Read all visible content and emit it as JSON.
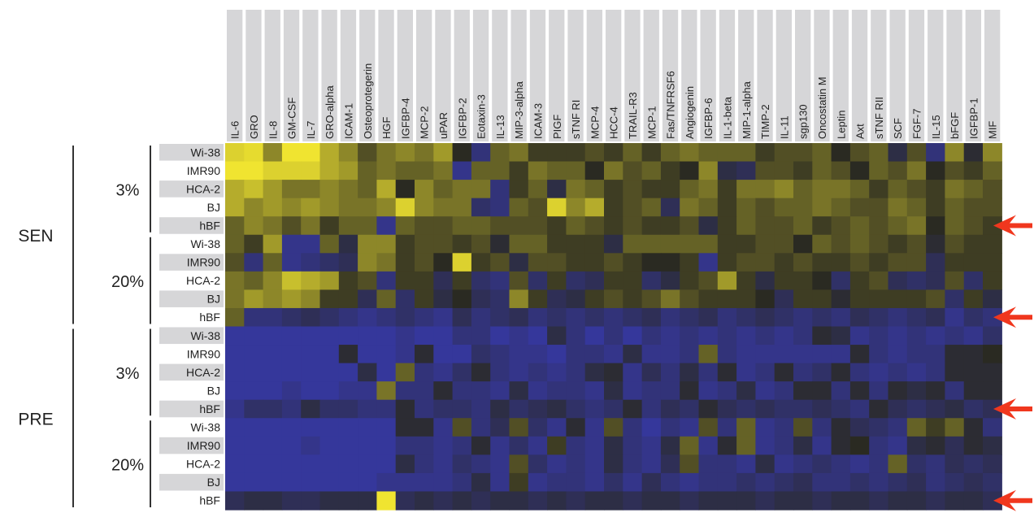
{
  "chart_data": {
    "type": "heatmap",
    "title": "",
    "xlabel": "",
    "ylabel": "",
    "columns": [
      "IL-6",
      "GRO",
      "IL-8",
      "GM-CSF",
      "IL-7",
      "GRO-alpha",
      "ICAM-1",
      "Osteoprotegerin",
      "HGF",
      "IGFBP-4",
      "MCP-2",
      "uPAR",
      "IGFBP-2",
      "Eotaxin-3",
      "IL-13",
      "MIP-3-alpha",
      "ICAM-3",
      "PIGF",
      "sTNF RI",
      "MCP-4",
      "HCC-4",
      "TRAIL-R3",
      "MCP-1",
      "Fas/TNFRSF6",
      "Angiogenin",
      "IGFBP-6",
      "IL-1-beta",
      "MIP-1-alpha",
      "TIMP-2",
      "IL-11",
      "sgp130",
      "Oncostatin M",
      "Leptin",
      "Axt",
      "sTNF RII",
      "SCF",
      "FGF-7",
      "IL-15",
      "bFGF",
      "IGFBP-1",
      "MIF"
    ],
    "row_labels": [
      "Wi-38",
      "IMR90",
      "HCA-2",
      "BJ",
      "hBF",
      "Wi-38",
      "IMR90",
      "HCA-2",
      "BJ",
      "hBF",
      "Wi-38",
      "IMR90",
      "HCA-2",
      "BJ",
      "hBF",
      "Wi-38",
      "IMR90",
      "HCA-2",
      "BJ",
      "hBF"
    ],
    "group_labels": [
      {
        "label": "SEN",
        "rows": [
          0,
          9
        ]
      },
      {
        "label": "PRE",
        "rows": [
          10,
          19
        ]
      }
    ],
    "subgroup_labels": [
      {
        "label": "3%",
        "rows": [
          0,
          4
        ]
      },
      {
        "label": "20%",
        "rows": [
          5,
          9
        ]
      },
      {
        "label": "3%",
        "rows": [
          10,
          14
        ]
      },
      {
        "label": "20%",
        "rows": [
          15,
          19
        ]
      }
    ],
    "arrow_rows": [
      4,
      9,
      14,
      19
    ],
    "color_scale": {
      "low": "#3a3ccf",
      "mid": "#2a2a22",
      "high": "#f0e430",
      "range": [
        -1,
        1
      ]
    },
    "values": [
      [
        0.9,
        0.95,
        0.5,
        1.0,
        1.0,
        0.7,
        0.5,
        0.2,
        0.4,
        0.5,
        0.4,
        0.6,
        0.0,
        -0.5,
        0.3,
        0.4,
        0.1,
        0.1,
        0.1,
        0.2,
        0.1,
        0.3,
        0.1,
        0.3,
        0.4,
        0.3,
        0.3,
        0.3,
        0.1,
        0.2,
        0.2,
        0.3,
        0.0,
        0.2,
        0.3,
        -0.2,
        0.2,
        -0.5,
        0.5,
        -0.1,
        0.5
      ],
      [
        1.0,
        1.0,
        0.9,
        0.9,
        0.9,
        0.7,
        0.6,
        0.3,
        0.4,
        0.3,
        0.3,
        0.4,
        -0.6,
        0.3,
        0.3,
        0.1,
        0.4,
        0.3,
        0.3,
        0.0,
        0.4,
        0.2,
        0.3,
        0.1,
        0.0,
        0.5,
        -0.2,
        -0.3,
        0.2,
        0.2,
        0.1,
        0.3,
        0.2,
        0.0,
        0.3,
        0.2,
        0.4,
        0.0,
        0.2,
        0.1,
        0.3
      ],
      [
        0.7,
        0.8,
        0.6,
        0.4,
        0.4,
        0.5,
        0.4,
        0.3,
        0.7,
        0.0,
        0.5,
        0.3,
        0.4,
        0.4,
        -0.5,
        0.1,
        0.3,
        -0.2,
        0.4,
        0.3,
        0.1,
        0.2,
        0.1,
        0.1,
        0.3,
        0.4,
        0.1,
        0.4,
        0.4,
        0.5,
        0.3,
        0.4,
        0.4,
        0.3,
        0.1,
        0.3,
        0.2,
        0.1,
        0.4,
        0.3,
        0.2
      ],
      [
        0.7,
        0.5,
        0.6,
        0.5,
        0.6,
        0.5,
        0.4,
        0.4,
        0.5,
        0.9,
        0.5,
        0.4,
        0.4,
        -0.4,
        -0.5,
        0.3,
        0.2,
        0.9,
        0.5,
        0.7,
        0.1,
        0.2,
        0.3,
        -0.3,
        0.4,
        0.3,
        0.1,
        0.3,
        0.2,
        0.3,
        0.3,
        0.4,
        0.3,
        0.2,
        0.2,
        0.4,
        0.3,
        0.1,
        0.3,
        0.2,
        0.2
      ],
      [
        0.3,
        0.5,
        0.4,
        0.2,
        0.4,
        0.1,
        0.3,
        0.3,
        -0.6,
        0.3,
        0.2,
        0.2,
        0.3,
        0.3,
        0.2,
        0.2,
        0.2,
        0.1,
        0.3,
        0.2,
        0.1,
        0.2,
        0.1,
        0.1,
        0.2,
        -0.2,
        0.1,
        0.3,
        0.2,
        0.2,
        0.3,
        0.1,
        0.2,
        0.3,
        0.2,
        0.3,
        0.4,
        0.0,
        0.3,
        0.2,
        0.1
      ],
      [
        0.3,
        0.1,
        0.6,
        -0.6,
        -0.6,
        0.3,
        -0.2,
        0.5,
        0.5,
        0.1,
        0.2,
        0.2,
        0.1,
        0.2,
        -0.1,
        0.3,
        0.3,
        0.1,
        0.1,
        0.1,
        -0.2,
        0.3,
        0.3,
        0.3,
        0.3,
        0.3,
        0.1,
        0.1,
        0.2,
        0.2,
        0.0,
        0.3,
        0.2,
        0.3,
        0.2,
        0.1,
        0.2,
        -0.1,
        0.2,
        0.1,
        0.1
      ],
      [
        0.2,
        -0.5,
        0.3,
        -0.6,
        -0.5,
        -0.4,
        -0.3,
        0.5,
        0.4,
        0.1,
        0.2,
        0.0,
        0.9,
        0.1,
        0.2,
        -0.2,
        0.2,
        0.2,
        0.1,
        0.1,
        0.2,
        0.1,
        0.0,
        0.0,
        0.1,
        -0.6,
        0.1,
        0.2,
        0.2,
        0.1,
        0.2,
        0.1,
        0.1,
        0.2,
        0.1,
        0.2,
        0.2,
        -0.3,
        0.1,
        0.1,
        0.1
      ],
      [
        0.4,
        0.3,
        0.5,
        0.8,
        0.7,
        0.6,
        0.1,
        0.2,
        -0.5,
        0.1,
        0.1,
        -0.3,
        0.1,
        -0.4,
        -0.5,
        0.2,
        -0.4,
        0.1,
        -0.4,
        -0.3,
        0.1,
        0.1,
        -0.4,
        -0.2,
        0.1,
        0.2,
        0.6,
        0.1,
        -0.2,
        0.1,
        0.1,
        0.0,
        -0.4,
        0.1,
        0.2,
        -0.3,
        -0.4,
        -0.3,
        0.2,
        -0.4,
        0.1
      ],
      [
        0.4,
        0.6,
        0.5,
        0.6,
        0.5,
        0.1,
        0.1,
        -0.3,
        0.3,
        -0.4,
        0.1,
        -0.2,
        0.0,
        -0.3,
        -0.4,
        0.5,
        0.1,
        -0.3,
        -0.2,
        0.1,
        0.2,
        0.1,
        0.2,
        0.4,
        0.2,
        0.1,
        0.1,
        0.1,
        0.0,
        -0.3,
        0.1,
        0.1,
        -0.1,
        0.1,
        0.1,
        0.1,
        0.1,
        0.2,
        -0.4,
        0.1,
        -0.2
      ],
      [
        0.3,
        -0.5,
        -0.5,
        -0.4,
        -0.3,
        -0.4,
        -0.5,
        -0.6,
        -0.5,
        -0.4,
        -0.5,
        -0.6,
        -0.3,
        -0.5,
        -0.4,
        -0.3,
        -0.5,
        -0.4,
        -0.5,
        -0.4,
        -0.5,
        -0.4,
        -0.3,
        -0.5,
        -0.4,
        -0.3,
        -0.5,
        -0.4,
        -0.3,
        -0.4,
        -0.5,
        -0.4,
        -0.5,
        -0.3,
        -0.4,
        -0.5,
        -0.4,
        -0.3,
        -0.6,
        -0.4,
        -0.5
      ],
      [
        -0.7,
        -0.7,
        -0.7,
        -0.7,
        -0.7,
        -0.7,
        -0.7,
        -0.7,
        -0.7,
        -0.6,
        -0.7,
        -0.7,
        -0.5,
        -0.5,
        -0.7,
        -0.6,
        -0.7,
        -0.2,
        -0.5,
        -0.7,
        -0.5,
        -0.7,
        -0.5,
        -0.6,
        -0.5,
        -0.6,
        -0.5,
        -0.6,
        -0.5,
        -0.6,
        -0.5,
        -0.1,
        -0.2,
        -0.6,
        -0.5,
        -0.6,
        -0.5,
        -0.6,
        -0.5,
        -0.6,
        -0.4
      ],
      [
        -0.7,
        -0.7,
        -0.7,
        -0.7,
        -0.7,
        -0.7,
        -0.1,
        -0.7,
        -0.7,
        -0.6,
        -0.1,
        -0.7,
        -0.7,
        -0.4,
        -0.5,
        -0.6,
        -0.6,
        -0.7,
        -0.5,
        -0.5,
        -0.6,
        -0.2,
        -0.6,
        -0.6,
        -0.5,
        0.3,
        -0.5,
        -0.6,
        -0.6,
        -0.6,
        -0.6,
        -0.6,
        -0.6,
        -0.1,
        -0.5,
        -0.6,
        -0.5,
        -0.5,
        -0.1,
        -0.1,
        0.0
      ],
      [
        -0.7,
        -0.7,
        -0.7,
        -0.7,
        -0.7,
        -0.7,
        -0.7,
        -0.2,
        -0.7,
        0.3,
        -0.5,
        -0.6,
        -0.4,
        -0.1,
        -0.5,
        -0.6,
        -0.5,
        -0.6,
        -0.5,
        -0.2,
        -0.1,
        -0.6,
        -0.3,
        -0.5,
        -0.2,
        -0.5,
        -0.1,
        -0.6,
        -0.5,
        -0.1,
        -0.5,
        -0.4,
        -0.1,
        -0.5,
        -0.6,
        -0.5,
        -0.6,
        -0.5,
        -0.1,
        -0.1,
        -0.1
      ],
      [
        -0.7,
        -0.7,
        -0.7,
        -0.6,
        -0.7,
        -0.7,
        -0.6,
        -0.6,
        0.4,
        -0.5,
        -0.5,
        -0.1,
        -0.5,
        -0.5,
        -0.6,
        -0.2,
        -0.6,
        -0.5,
        -0.5,
        -0.6,
        -0.2,
        -0.6,
        -0.5,
        -0.5,
        -0.1,
        -0.6,
        -0.5,
        -0.2,
        -0.6,
        -0.5,
        -0.1,
        -0.1,
        -0.5,
        -0.1,
        -0.5,
        -0.1,
        -0.2,
        -0.1,
        -0.5,
        -0.1,
        -0.1
      ],
      [
        -0.6,
        -0.4,
        -0.4,
        -0.5,
        -0.2,
        -0.4,
        -0.4,
        -0.5,
        -0.5,
        -0.1,
        -0.5,
        -0.4,
        -0.4,
        -0.5,
        -0.2,
        -0.4,
        -0.3,
        -0.2,
        -0.4,
        -0.5,
        -0.4,
        -0.1,
        -0.5,
        -0.3,
        -0.4,
        -0.1,
        -0.3,
        -0.4,
        -0.3,
        -0.4,
        -0.4,
        -0.3,
        -0.4,
        -0.5,
        -0.1,
        -0.3,
        -0.4,
        -0.3,
        -0.2,
        -0.4,
        -0.3
      ],
      [
        -0.7,
        -0.7,
        -0.7,
        -0.7,
        -0.7,
        -0.7,
        -0.7,
        -0.7,
        -0.7,
        -0.1,
        -0.1,
        -0.6,
        0.2,
        -0.5,
        -0.3,
        0.2,
        -0.4,
        -0.6,
        -0.1,
        -0.6,
        0.2,
        -0.5,
        -0.7,
        -0.5,
        -0.6,
        0.2,
        -0.5,
        0.3,
        -0.6,
        -0.5,
        0.2,
        -0.5,
        -0.1,
        -0.3,
        -0.4,
        -0.5,
        0.3,
        0.1,
        0.3,
        -0.1,
        -0.5
      ],
      [
        -0.7,
        -0.7,
        -0.7,
        -0.7,
        -0.6,
        -0.7,
        -0.7,
        -0.7,
        -0.7,
        -0.5,
        -0.5,
        -0.6,
        -0.5,
        -0.1,
        -0.6,
        -0.4,
        -0.6,
        0.1,
        -0.5,
        -0.6,
        -0.2,
        -0.5,
        -0.6,
        -0.2,
        0.3,
        -0.6,
        -0.1,
        0.3,
        -0.6,
        -0.5,
        -0.2,
        -0.6,
        -0.1,
        0.0,
        -0.5,
        -0.6,
        -0.2,
        -0.1,
        -0.3,
        -0.1,
        -0.2
      ],
      [
        -0.7,
        -0.7,
        -0.7,
        -0.7,
        -0.7,
        -0.7,
        -0.7,
        -0.7,
        -0.7,
        -0.2,
        -0.5,
        -0.6,
        -0.4,
        -0.5,
        -0.6,
        0.2,
        -0.4,
        -0.6,
        -0.5,
        -0.6,
        -0.2,
        -0.5,
        -0.6,
        -0.3,
        0.2,
        -0.5,
        -0.5,
        -0.6,
        -0.2,
        -0.6,
        -0.5,
        -0.4,
        -0.5,
        -0.6,
        -0.5,
        0.3,
        -0.4,
        -0.5,
        -0.3,
        -0.4,
        -0.3
      ],
      [
        -0.7,
        -0.7,
        -0.7,
        -0.7,
        -0.7,
        -0.7,
        -0.7,
        -0.7,
        -0.6,
        -0.6,
        -0.6,
        -0.6,
        -0.5,
        -0.2,
        -0.6,
        0.1,
        -0.6,
        -0.5,
        -0.5,
        -0.6,
        -0.4,
        -0.6,
        -0.3,
        -0.5,
        -0.6,
        -0.5,
        -0.5,
        -0.4,
        -0.5,
        -0.4,
        -0.3,
        -0.5,
        -0.5,
        -0.4,
        -0.5,
        -0.4,
        -0.3,
        -0.5,
        -0.4,
        -0.3,
        -0.4
      ],
      [
        -0.3,
        -0.2,
        -0.2,
        -0.3,
        -0.3,
        -0.2,
        -0.2,
        -0.2,
        1.0,
        -0.3,
        -0.2,
        -0.3,
        -0.2,
        -0.3,
        -0.2,
        -0.2,
        -0.3,
        -0.2,
        -0.3,
        -0.2,
        -0.2,
        -0.3,
        -0.2,
        -0.2,
        -0.3,
        -0.2,
        -0.2,
        -0.2,
        -0.3,
        -0.2,
        -0.2,
        -0.3,
        -0.2,
        -0.2,
        -0.3,
        -0.2,
        -0.2,
        -0.3,
        -0.2,
        -0.2,
        -0.3
      ]
    ]
  }
}
